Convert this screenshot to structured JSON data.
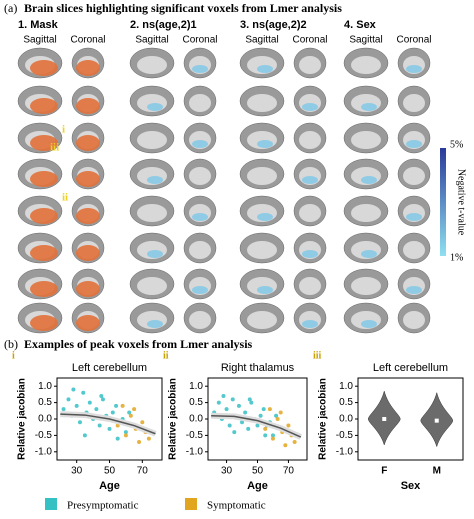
{
  "panel_a": {
    "label": "(a)",
    "title": "Brain slices highlighting significant voxels from Lmer analysis",
    "columns": [
      {
        "title": "1. Mask",
        "views": [
          "Sagittal",
          "Coronal"
        ]
      },
      {
        "title": "2. ns(age,2)1",
        "views": [
          "Sagittal",
          "Coronal"
        ]
      },
      {
        "title": "3. ns(age,2)2",
        "views": [
          "Sagittal",
          "Coronal"
        ]
      },
      {
        "title": "4. Sex",
        "views": [
          "Sagittal",
          "Coronal"
        ]
      }
    ],
    "annotations": [
      "i",
      "iii",
      "ii"
    ],
    "colorbar": {
      "label": "Negative t-value",
      "top": "5%",
      "bottom": "1%"
    }
  },
  "panel_b": {
    "label": "(b)",
    "title": "Examples of peak voxels from Lmer analysis",
    "plots": [
      {
        "tag": "i",
        "type": "scatter",
        "title": "Left cerebellum",
        "x_label": "Age",
        "y_label": "Relative jacobian",
        "xlim": [
          18,
          82
        ],
        "ylim": [
          -1.25,
          1.25
        ],
        "xticks": [
          30,
          50,
          70
        ],
        "yticks": [
          {
            "value": -1,
            "label": "-1.0"
          },
          {
            "value": -0.5,
            "label": "-0.5"
          },
          {
            "value": 0,
            "label": "0.0"
          },
          {
            "value": 0.5,
            "label": "0.5"
          },
          {
            "value": 1,
            "label": "1.0"
          }
        ],
        "series": [
          {
            "name": "Presymptomatic",
            "color": "#35c0c4",
            "x": [
              22,
              25,
              27,
              30,
              32,
              34,
              36,
              38,
              40,
              42,
              44,
              46,
              48,
              50,
              52,
              54,
              56,
              58,
              60,
              62,
              35,
              28,
              45,
              55,
              65
            ],
            "y": [
              0.3,
              0.6,
              0.1,
              0.4,
              -0.1,
              0.8,
              0.2,
              0.5,
              0.0,
              0.3,
              -0.2,
              0.6,
              0.1,
              -0.3,
              0.2,
              0.4,
              -0.1,
              0.0,
              -0.4,
              0.2,
              -0.5,
              0.9,
              0.7,
              -0.6,
              -0.2
            ]
          },
          {
            "name": "Symptomatic",
            "color": "#e2a51f",
            "x": [
              55,
              60,
              63,
              66,
              68,
              70,
              72,
              74,
              65,
              58
            ],
            "y": [
              -0.2,
              -0.5,
              0.1,
              -0.3,
              -0.7,
              -0.1,
              -0.4,
              -0.6,
              0.3,
              0.4
            ]
          }
        ],
        "fit": {
          "x": [
            20,
            35,
            50,
            65,
            78
          ],
          "y": [
            0.15,
            0.12,
            0.0,
            -0.2,
            -0.45
          ]
        }
      },
      {
        "tag": "ii",
        "type": "scatter",
        "title": "Right thalamus",
        "x_label": "Age",
        "y_label": "Relative jacobian",
        "xlim": [
          18,
          82
        ],
        "ylim": [
          -1.25,
          1.25
        ],
        "xticks": [
          30,
          50,
          70
        ],
        "yticks": [
          {
            "value": -1,
            "label": "-1.0"
          },
          {
            "value": -0.5,
            "label": "-0.5"
          },
          {
            "value": 0,
            "label": "0.0"
          },
          {
            "value": 0.5,
            "label": "0.5"
          },
          {
            "value": 1,
            "label": "1.0"
          }
        ],
        "series": [
          {
            "name": "Presymptomatic",
            "color": "#35c0c4",
            "x": [
              22,
              25,
              27,
              30,
              32,
              34,
              36,
              38,
              40,
              42,
              44,
              46,
              48,
              50,
              52,
              54,
              56,
              58,
              60,
              62,
              35,
              28,
              45,
              55,
              65
            ],
            "y": [
              0.2,
              0.5,
              0.0,
              0.3,
              -0.2,
              0.6,
              0.1,
              0.4,
              -0.1,
              0.2,
              -0.3,
              0.5,
              0.0,
              -0.2,
              0.1,
              0.3,
              -0.2,
              -0.1,
              -0.5,
              0.1,
              -0.4,
              0.7,
              0.6,
              -0.5,
              -0.3
            ]
          },
          {
            "name": "Symptomatic",
            "color": "#e2a51f",
            "x": [
              55,
              60,
              63,
              66,
              68,
              70,
              72,
              74,
              65,
              58
            ],
            "y": [
              -0.3,
              -0.6,
              0.0,
              -0.4,
              -0.8,
              -0.2,
              -0.5,
              -0.7,
              0.2,
              0.3
            ]
          }
        ],
        "fit": {
          "x": [
            20,
            35,
            50,
            65,
            78
          ],
          "y": [
            0.1,
            0.08,
            -0.05,
            -0.28,
            -0.55
          ]
        }
      },
      {
        "tag": "iii",
        "type": "violin",
        "title": "Left cerebellum",
        "x_label": "Sex",
        "y_label": "Relative jacobian",
        "categories": [
          "F",
          "M"
        ],
        "medians": [
          0.0,
          -0.05
        ],
        "color": "#6b6b6b",
        "ylim": [
          -1.25,
          1.25
        ],
        "yticks": [
          {
            "value": -1,
            "label": "-1.0"
          },
          {
            "value": -0.5,
            "label": "-0.5"
          },
          {
            "value": 0,
            "label": "0.0"
          },
          {
            "value": 0.5,
            "label": "0.5"
          },
          {
            "value": 1,
            "label": "1.0"
          }
        ]
      }
    ],
    "legend": [
      {
        "name": "Presymptomatic",
        "color": "#35c0c4"
      },
      {
        "name": "Symptomatic",
        "color": "#e2a51f"
      }
    ]
  }
}
